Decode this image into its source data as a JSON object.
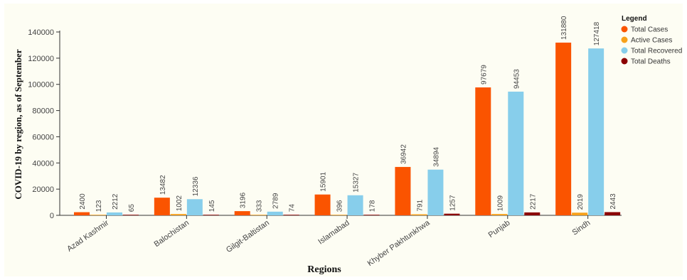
{
  "chart_data": {
    "type": "bar",
    "title": "",
    "ylabel": "COVID-19 by region, as of September",
    "xlabel": "Regions",
    "ylim": [
      0,
      140000
    ],
    "yticks": [
      0,
      20000,
      40000,
      60000,
      80000,
      100000,
      120000,
      140000
    ],
    "categories": [
      "Azad Kashmir",
      "Balochistan",
      "Gilgit-Baltistan",
      "Islamabad",
      "Khyber Pakhtunkhwa",
      "Punjab",
      "Sindh"
    ],
    "series": [
      {
        "name": "Total Cases",
        "color": "#fa5400",
        "values": [
          2400,
          13482,
          3196,
          15901,
          36942,
          97679,
          131880
        ]
      },
      {
        "name": "Active Cases",
        "color": "#f7a11a",
        "values": [
          123,
          1002,
          333,
          396,
          791,
          1009,
          2019
        ]
      },
      {
        "name": "Total Recovered",
        "color": "#87ceeb",
        "values": [
          2212,
          12336,
          2789,
          15327,
          34894,
          94453,
          127418
        ]
      },
      {
        "name": "Total Deaths",
        "color": "#8b0000",
        "values": [
          65,
          145,
          74,
          178,
          1257,
          2217,
          2443
        ]
      }
    ],
    "legend": {
      "title": "Legend",
      "position": "top-right"
    },
    "grid": false
  }
}
